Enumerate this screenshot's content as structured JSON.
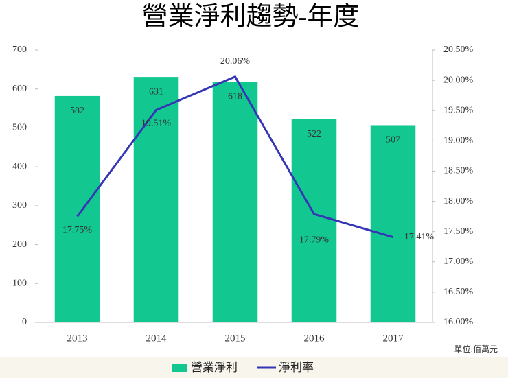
{
  "chart_data": {
    "type": "bar-line",
    "title": "營業淨利趨勢-年度",
    "note": "單位:佰萬元",
    "categories": [
      "2013",
      "2014",
      "2015",
      "2016",
      "2017"
    ],
    "series": [
      {
        "name": "營業淨利",
        "type": "bar",
        "color": "#12c890",
        "values": [
          582,
          631,
          618,
          522,
          507
        ]
      },
      {
        "name": "淨利率",
        "type": "line",
        "axis": "y2",
        "color": "#3535b5",
        "values": [
          17.75,
          19.51,
          20.06,
          17.79,
          17.41
        ],
        "value_labels": [
          "17.75%",
          "19.51%",
          "20.06%",
          "17.79%",
          "17.41%"
        ]
      }
    ],
    "ylim": [
      0,
      700
    ],
    "yticks": [
      0,
      100,
      200,
      300,
      400,
      500,
      600,
      700
    ],
    "y2lim": [
      16,
      20.5
    ],
    "y2ticks": [
      {
        "value": 16,
        "label": "16.00%"
      },
      {
        "value": 16.5,
        "label": "16.50%"
      },
      {
        "value": 17,
        "label": "17.00%"
      },
      {
        "value": 17.5,
        "label": "17.50%"
      },
      {
        "value": 18,
        "label": "18.00%"
      },
      {
        "value": 18.5,
        "label": "18.50%"
      },
      {
        "value": 19,
        "label": "19.00%"
      },
      {
        "value": 19.5,
        "label": "19.50%"
      },
      {
        "value": 20,
        "label": "20.00%"
      },
      {
        "value": 20.5,
        "label": "20.50%"
      }
    ],
    "grid": false,
    "legend": "bottom"
  }
}
